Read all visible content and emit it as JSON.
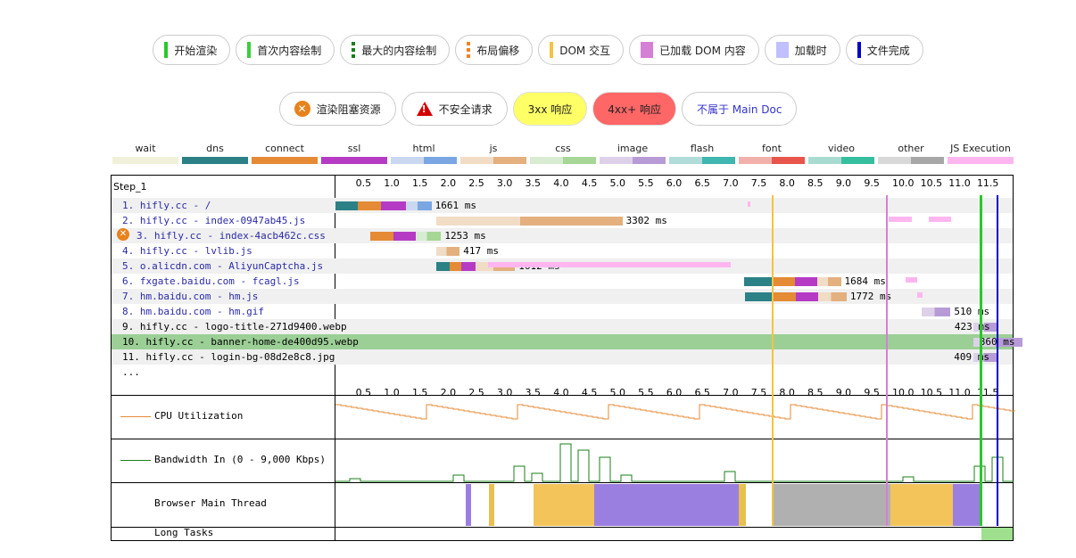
{
  "legend_top": [
    {
      "label": "开始渲染",
      "marker": "line",
      "color": "#28c828"
    },
    {
      "label": "首次内容绘制",
      "marker": "line",
      "color": "#39d039"
    },
    {
      "label": "最大的内容绘制",
      "marker": "dash",
      "color": "#1a7f1a"
    },
    {
      "label": "布局偏移",
      "marker": "dash",
      "color": "#f58220"
    },
    {
      "label": "DOM 交互",
      "marker": "line",
      "color": "#f5c342"
    },
    {
      "label": "已加载 DOM 内容",
      "marker": "block",
      "color": "#d57fd5"
    },
    {
      "label": "加载时",
      "marker": "block",
      "color": "#c0c0ff"
    },
    {
      "label": "文件完成",
      "marker": "line",
      "color": "#0000cc"
    }
  ],
  "legend_second": [
    {
      "label": "渲染阻塞资源",
      "kind": "blocking-icon"
    },
    {
      "label": "不安全请求",
      "kind": "warning-icon"
    },
    {
      "label": "3xx 响应",
      "kind": "yellow"
    },
    {
      "label": "4xx+ 响应",
      "kind": "red"
    },
    {
      "label": "不属于 Main Doc",
      "kind": "link"
    }
  ],
  "types": [
    {
      "label": "wait",
      "c1": "#f1f1db",
      "c2": "#f1f1db"
    },
    {
      "label": "dns",
      "c1": "#2b8186",
      "c2": "#2b8186"
    },
    {
      "label": "connect",
      "c1": "#e58a35",
      "c2": "#e58a35"
    },
    {
      "label": "ssl",
      "c1": "#b53bc5",
      "c2": "#b53bc5"
    },
    {
      "label": "html",
      "c1": "#c9d8ef",
      "c2": "#7aa7e2"
    },
    {
      "label": "js",
      "c1": "#f1dcc5",
      "c2": "#e3b07e"
    },
    {
      "label": "css",
      "c1": "#d8ecd2",
      "c2": "#a6d796"
    },
    {
      "label": "image",
      "c1": "#ddd1e9",
      "c2": "#b79bd6"
    },
    {
      "label": "flash",
      "c1": "#b0dcd9",
      "c2": "#3fb6af"
    },
    {
      "label": "font",
      "c1": "#f2b0ab",
      "c2": "#e8554a"
    },
    {
      "label": "video",
      "c1": "#a9dcd1",
      "c2": "#36bf9f"
    },
    {
      "label": "other",
      "c1": "#d8d8d8",
      "c2": "#a7a7a7"
    },
    {
      "label": "JS Execution",
      "c1": "#ffb6f0",
      "c2": "#ffb6f0"
    }
  ],
  "step_label": "Step_1",
  "axis_ticks": [
    "0.5",
    "1.0",
    "1.5",
    "2.0",
    "2.5",
    "3.0",
    "3.5",
    "4.0",
    "4.5",
    "5.0",
    "5.5",
    "6.0",
    "6.5",
    "7.0",
    "7.5",
    "8.0",
    "8.5",
    "9.0",
    "9.5",
    "10.0",
    "10.5",
    "11.0",
    "11.5"
  ],
  "requests": [
    {
      "label": "1. hifly.cc - /",
      "blue": true,
      "ms": "1661 ms",
      "start": 0.0,
      "dns": 0.4,
      "connect": 0.4,
      "ssl": 0.45,
      "type": "html",
      "dl": 0.45
    },
    {
      "label": "2. hifly.cc - index-0947ab45.js",
      "blue": true,
      "ms": "3302 ms",
      "start": 1.78,
      "type": "js",
      "dl": 3.3
    },
    {
      "label": "3. hifly.cc - index-4acb462c.css",
      "blue": true,
      "blocking": true,
      "ms": "1253 ms",
      "start": 0.62,
      "connect": 0.4,
      "ssl": 0.4,
      "type": "css",
      "dl": 0.45
    },
    {
      "label": "4. hifly.cc - lvlib.js",
      "blue": true,
      "ms": "417 ms",
      "start": 1.78,
      "type": "js",
      "dl": 0.42
    },
    {
      "label": "5. o.alicdn.com - AliyunCaptcha.js",
      "blue": true,
      "ms": "1612 ms",
      "start": 1.78,
      "dns": 0.25,
      "connect": 0.2,
      "ssl": 0.25,
      "type": "js",
      "dl": 0.7
    },
    {
      "label": "6. fxgate.baidu.com - fcagl.js",
      "blue": true,
      "ms": "1684 ms",
      "start": 7.23,
      "dns": 0.5,
      "connect": 0.4,
      "ssl": 0.4,
      "type": "js",
      "dl": 0.42
    },
    {
      "label": "7. hm.baidu.com - hm.js",
      "blue": true,
      "ms": "1772 ms",
      "start": 7.25,
      "dns": 0.5,
      "connect": 0.4,
      "ssl": 0.4,
      "type": "js",
      "dl": 0.5
    },
    {
      "label": "8. hm.baidu.com - hm.gif",
      "blue": true,
      "ms": "510 ms",
      "start": 10.38,
      "type": "image",
      "dl": 0.51
    },
    {
      "label": "9. hifly.cc - logo-title-271d9400.webp",
      "blue": false,
      "ms": "423 ms",
      "start": 11.3,
      "type": "image",
      "dl": 0.42
    },
    {
      "label": "10. hifly.cc - banner-home-de400d95.webp",
      "blue": false,
      "highlight": true,
      "ms": "860 ms",
      "start": 11.3,
      "type": "image",
      "dl": 0.86
    },
    {
      "label": "11. hifly.cc - login-bg-08d2e8c8.jpg",
      "blue": false,
      "ms": "409 ms",
      "start": 11.3,
      "type": "image",
      "dl": 0.41
    },
    {
      "label": "...",
      "blue": false
    }
  ],
  "section_labels": {
    "cpu": "CPU Utilization",
    "bandwidth": "Bandwidth In (0 - 9,000 Kbps)",
    "main_thread": "Browser Main Thread",
    "long_tasks": "Long Tasks"
  },
  "markers": {
    "dom_interactive": 7.72,
    "dom_content_loaded": 9.75,
    "start_render": 11.4,
    "document_complete": 11.7
  }
}
